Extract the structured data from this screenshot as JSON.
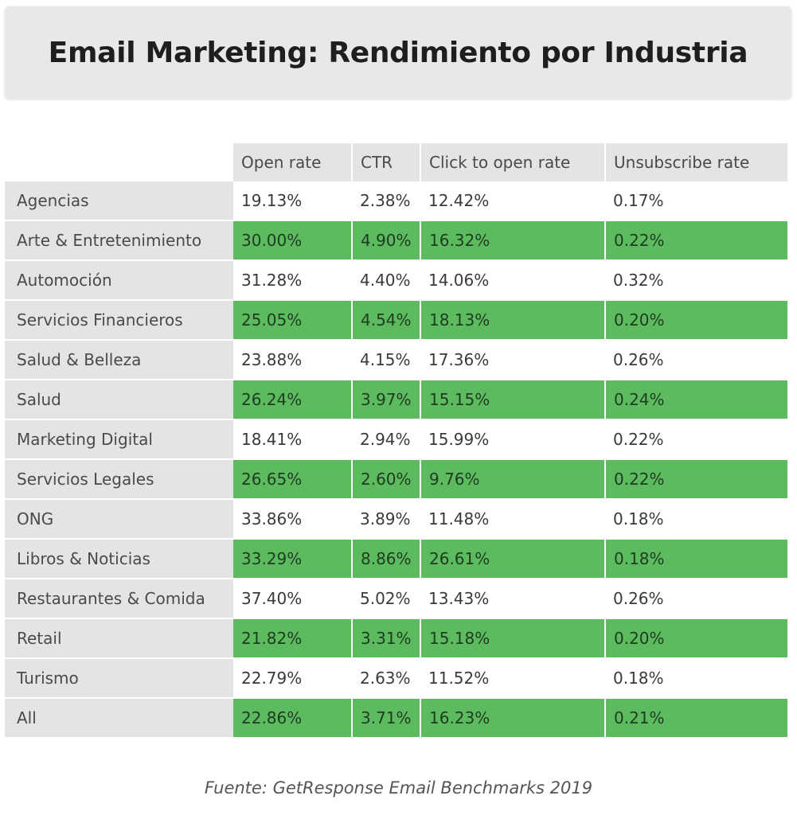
{
  "title": "Email Marketing: Rendimiento por Industria",
  "colors": {
    "highlight_row": "#5cbb5e",
    "label_bg": "#e4e4e4",
    "title_bg": "#e8e8e8"
  },
  "chart_data": {
    "type": "table",
    "title": "Email Marketing: Rendimiento por Industria",
    "columns": [
      "Open rate",
      "CTR",
      "Click to open rate",
      "Unsubscribe rate"
    ],
    "rows": [
      {
        "label": "Agencias",
        "values": [
          "19.13%",
          "2.38%",
          "12.42%",
          "0.17%"
        ],
        "highlight": false
      },
      {
        "label": "Arte & Entretenimiento",
        "values": [
          "30.00%",
          "4.90%",
          "16.32%",
          "0.22%"
        ],
        "highlight": true
      },
      {
        "label": "Automoción",
        "values": [
          "31.28%",
          "4.40%",
          "14.06%",
          "0.32%"
        ],
        "highlight": false
      },
      {
        "label": "Servicios Financieros",
        "values": [
          "25.05%",
          "4.54%",
          "18.13%",
          "0.20%"
        ],
        "highlight": true
      },
      {
        "label": "Salud & Belleza",
        "values": [
          "23.88%",
          "4.15%",
          "17.36%",
          "0.26%"
        ],
        "highlight": false
      },
      {
        "label": "Salud",
        "values": [
          "26.24%",
          "3.97%",
          "15.15%",
          "0.24%"
        ],
        "highlight": true
      },
      {
        "label": "Marketing Digital",
        "values": [
          "18.41%",
          "2.94%",
          "15.99%",
          "0.22%"
        ],
        "highlight": false
      },
      {
        "label": "Servicios Legales",
        "values": [
          "26.65%",
          "2.60%",
          "9.76%",
          "0.22%"
        ],
        "highlight": true
      },
      {
        "label": "ONG",
        "values": [
          "33.86%",
          "3.89%",
          "11.48%",
          "0.18%"
        ],
        "highlight": false
      },
      {
        "label": "Libros & Noticias",
        "values": [
          "33.29%",
          "8.86%",
          "26.61%",
          "0.18%"
        ],
        "highlight": true
      },
      {
        "label": "Restaurantes & Comida",
        "values": [
          "37.40%",
          "5.02%",
          "13.43%",
          "0.26%"
        ],
        "highlight": false
      },
      {
        "label": "Retail",
        "values": [
          "21.82%",
          "3.31%",
          "15.18%",
          "0.20%"
        ],
        "highlight": true
      },
      {
        "label": "Turismo",
        "values": [
          "22.79%",
          "2.63%",
          "11.52%",
          "0.18%"
        ],
        "highlight": false
      },
      {
        "label": "All",
        "values": [
          "22.86%",
          "3.71%",
          "16.23%",
          "0.21%"
        ],
        "highlight": true
      }
    ]
  },
  "footer": "Fuente: GetResponse Email Benchmarks 2019"
}
